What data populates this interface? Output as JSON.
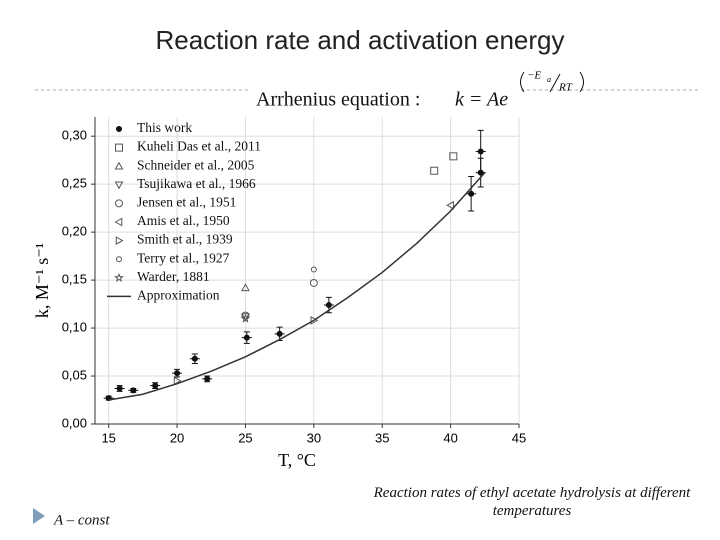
{
  "slide_title": "Reaction rate and activation energy",
  "equation": {
    "label": "Arrhenius equation :",
    "lhs": "k = Ae",
    "exp_num": "−E",
    "exp_sub": "a",
    "exp_den": "RT"
  },
  "bullet": "A – const",
  "caption": "Reaction rates of ethyl acetate hydrolysis at different temperatures",
  "chart_data": {
    "type": "scatter",
    "xlabel": "T, °C",
    "ylabel": "k, M⁻¹ s⁻¹",
    "xlim": [
      14,
      45
    ],
    "ylim": [
      0,
      0.32
    ],
    "xticks": [
      15,
      20,
      25,
      30,
      35,
      40,
      45
    ],
    "yticks": [
      {
        "value": 0,
        "label": "0,00"
      },
      {
        "value": 0.05,
        "label": "0,05"
      },
      {
        "value": 0.1,
        "label": "0,10"
      },
      {
        "value": 0.15,
        "label": "0,15"
      },
      {
        "value": 0.2,
        "label": "0,20"
      },
      {
        "value": 0.25,
        "label": "0,25"
      },
      {
        "value": 0.3,
        "label": "0,30"
      }
    ],
    "grid": true,
    "legend": "upper-left",
    "series": [
      {
        "name": "This work",
        "marker": "dot",
        "color": "#111111",
        "x": [
          15,
          15.8,
          16.8,
          18.4,
          20,
          21.3,
          22.2,
          25.1,
          27.5,
          31.1,
          41.5,
          42.2,
          42.2
        ],
        "values": [
          0.027,
          0.037,
          0.035,
          0.04,
          0.053,
          0.068,
          0.047,
          0.09,
          0.094,
          0.124,
          0.24,
          0.262,
          0.284
        ],
        "errors": [
          0.002,
          0.003,
          0.002,
          0.003,
          0.004,
          0.005,
          0.003,
          0.006,
          0.007,
          0.008,
          0.018,
          0.015,
          0.022
        ]
      },
      {
        "name": "Kuheli Das et al., 2011",
        "marker": "square",
        "color": "#555555",
        "x": [
          38.8,
          40.2
        ],
        "values": [
          0.264,
          0.279
        ]
      },
      {
        "name": "Schneider et al., 2005",
        "marker": "triangle",
        "color": "#555555",
        "x": [
          25
        ],
        "values": [
          0.142
        ]
      },
      {
        "name": "Tsujikawa et al., 1966",
        "marker": "triangle-down",
        "color": "#555555",
        "x": [
          25
        ],
        "values": [
          0.112
        ]
      },
      {
        "name": "Jensen et al., 1951",
        "marker": "circle",
        "color": "#555555",
        "x": [
          25,
          30
        ],
        "values": [
          0.113,
          0.147
        ]
      },
      {
        "name": "Amis et al., 1950",
        "marker": "triangle-left",
        "color": "#555555",
        "x": [
          40
        ],
        "values": [
          0.228
        ]
      },
      {
        "name": "Smith et al., 1939",
        "marker": "triangle-right",
        "color": "#555555",
        "x": [
          20,
          30
        ],
        "values": [
          0.045,
          0.108
        ]
      },
      {
        "name": "Terry et al., 1927",
        "marker": "small-circle",
        "color": "#555555",
        "x": [
          30
        ],
        "values": [
          0.161
        ]
      },
      {
        "name": "Warder, 1881",
        "marker": "star",
        "color": "#555555",
        "x": [
          25
        ],
        "values": [
          0.11
        ]
      },
      {
        "name": "Approximation",
        "marker": "line",
        "color": "#333333",
        "x": [
          15,
          17.5,
          20,
          22.5,
          25,
          27.5,
          30,
          32.5,
          35,
          37.5,
          40,
          42.5
        ],
        "values": [
          0.025,
          0.031,
          0.042,
          0.055,
          0.07,
          0.088,
          0.108,
          0.132,
          0.158,
          0.188,
          0.222,
          0.262
        ]
      }
    ]
  }
}
